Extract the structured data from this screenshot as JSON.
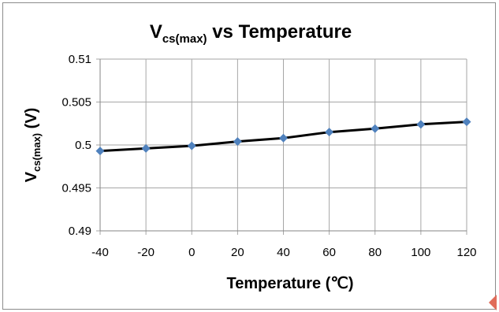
{
  "chart_data": {
    "type": "line",
    "title": {
      "main": "V",
      "sub": "cs(max)",
      "rest": " vs Temperature"
    },
    "xlabel": "Temperature (℃)",
    "ylabel": {
      "main": "V",
      "sub": "cs(max)",
      "rest": " (V)"
    },
    "x": [
      -40,
      -20,
      0,
      20,
      40,
      60,
      80,
      100,
      120
    ],
    "x_tick_labels": [
      "-40",
      "-20",
      "0",
      "20",
      "40",
      "60",
      "80",
      "100",
      "120"
    ],
    "y_ticks": [
      0.49,
      0.495,
      0.5,
      0.505,
      0.51
    ],
    "y_tick_labels": [
      "0.49",
      "0.495",
      "0.5",
      "0.505",
      "0.51"
    ],
    "ylim": [
      0.49,
      0.51
    ],
    "grid": true,
    "legend": "none",
    "series": [
      {
        "values": [
          0.4993,
          0.4996,
          0.4999,
          0.5004,
          0.5008,
          0.5015,
          0.5019,
          0.5024,
          0.5027
        ],
        "line_color": "#000000",
        "marker": "diamond",
        "marker_color": "#4f81bd"
      }
    ],
    "grid_color": "#a6a6a6",
    "corner_marker_color": "#e06c5a"
  }
}
